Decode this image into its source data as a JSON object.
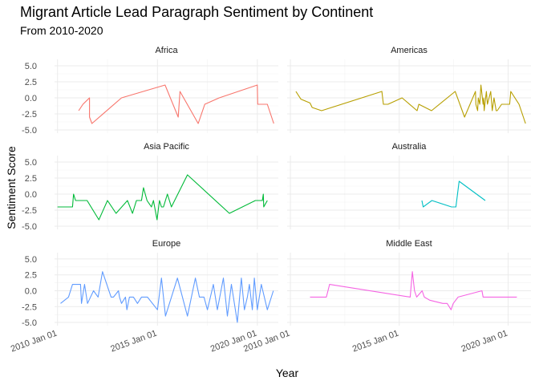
{
  "chart_data": {
    "type": "line",
    "title": "Migrant Article Lead Paragraph Sentiment by Continent",
    "subtitle": "From 2010-2020",
    "xlabel": "Year",
    "ylabel": "Sentiment Score",
    "xlim": [
      2009.85,
      2021.05
    ],
    "ylim": [
      -5.5,
      6.0
    ],
    "x_ticks": [
      2010,
      2015,
      2020
    ],
    "x_tick_labels": [
      "2010 Jan 01",
      "2015 Jan 01",
      "2020 Jan 01"
    ],
    "y_ticks": [
      -5,
      -2.5,
      0,
      2.5,
      5
    ],
    "y_tick_labels": [
      "-5.0",
      "-2.5",
      "0.0",
      "2.5",
      "5.0"
    ],
    "grid": true,
    "legend": "none",
    "panels": [
      {
        "name": "Africa",
        "color": "#F8766D",
        "x": [
          2011.06,
          2011.27,
          2011.6,
          2011.6,
          2011.72,
          2013.2,
          2015.38,
          2016.04,
          2016.13,
          2017.04,
          2017.37,
          2018.09,
          2020.0,
          2020.02,
          2020.5,
          2020.82
        ],
        "y": [
          -2.0,
          -1.0,
          0.0,
          -3.0,
          -4.0,
          0.0,
          2.0,
          -3.0,
          1.0,
          -4.0,
          -1.0,
          0.0,
          2.0,
          -1.0,
          -1.0,
          -4.0
        ]
      },
      {
        "name": "Americas",
        "color": "#B79F00",
        "x": [
          2010.25,
          2010.48,
          2010.9,
          2011.0,
          2011.43,
          2014.2,
          2014.27,
          2014.48,
          2015.13,
          2015.82,
          2015.9,
          2016.48,
          2017.57,
          2018.0,
          2018.5,
          2018.52,
          2018.6,
          2018.63,
          2018.7,
          2018.75,
          2018.85,
          2018.88,
          2018.9,
          2019.0,
          2019.05,
          2019.2,
          2019.27,
          2019.35,
          2019.45,
          2019.5,
          2019.7,
          2020.07,
          2020.12,
          2020.5,
          2020.8
        ],
        "y": [
          1.0,
          -0.2,
          -0.8,
          -1.5,
          -2.0,
          1.0,
          -1.0,
          -1.0,
          0.0,
          -2.0,
          -1.0,
          -2.0,
          1.0,
          -3.0,
          1.0,
          -1.0,
          -2.0,
          0.0,
          -1.0,
          2.0,
          -1.0,
          0.0,
          -2.0,
          1.0,
          -1.0,
          1.0,
          -2.0,
          0.0,
          -2.0,
          -2.0,
          -1.0,
          -1.0,
          1.0,
          -1.0,
          -4.0
        ]
      },
      {
        "name": "Asia Pacific",
        "color": "#00BA38",
        "x": [
          2010.0,
          2010.75,
          2010.8,
          2010.9,
          2011.48,
          2012.07,
          2012.5,
          2012.93,
          2013.5,
          2013.75,
          2013.95,
          2014.2,
          2014.3,
          2014.48,
          2014.7,
          2014.8,
          2014.98,
          2015.1,
          2015.2,
          2015.3,
          2015.5,
          2015.7,
          2016.5,
          2018.6,
          2019.9,
          2020.25,
          2020.3,
          2020.32,
          2020.5
        ],
        "y": [
          -2.0,
          -2.0,
          0.0,
          -1.0,
          -1.0,
          -4.0,
          -1.0,
          -3.0,
          -1.0,
          -3.0,
          -1.0,
          -1.0,
          1.0,
          -1.0,
          -2.0,
          -1.0,
          -4.0,
          -1.0,
          -2.0,
          -2.0,
          0.0,
          -2.0,
          3.0,
          -3.0,
          -1.0,
          -1.0,
          0.0,
          -2.0,
          -1.0
        ]
      },
      {
        "name": "Australia",
        "color": "#00BFC4",
        "x": [
          2016.04,
          2016.1,
          2016.5,
          2017.4,
          2017.6,
          2017.75,
          2018.95
        ],
        "y": [
          -1.0,
          -2.0,
          -1.0,
          -2.0,
          -2.0,
          2.0,
          -1.0
        ]
      },
      {
        "name": "Europe",
        "color": "#619CFF",
        "x": [
          2010.15,
          2010.55,
          2010.75,
          2011.15,
          2011.2,
          2011.35,
          2011.5,
          2011.8,
          2012.03,
          2012.25,
          2012.68,
          2012.8,
          2013.05,
          2013.1,
          2013.2,
          2013.4,
          2013.47,
          2013.6,
          2013.8,
          2014.0,
          2014.2,
          2014.5,
          2015.0,
          2015.2,
          2015.4,
          2016.0,
          2016.5,
          2016.9,
          2017.1,
          2017.33,
          2017.5,
          2017.8,
          2018.0,
          2018.3,
          2018.5,
          2018.7,
          2019.0,
          2019.2,
          2019.35,
          2019.5,
          2019.6,
          2019.75,
          2019.85,
          2020.0,
          2020.2,
          2020.5,
          2020.8
        ],
        "y": [
          -2.0,
          -1.0,
          1.0,
          1.0,
          -2.0,
          1.0,
          -2.0,
          0.0,
          -1.0,
          3.0,
          -1.0,
          -1.0,
          0.0,
          -1.0,
          -2.0,
          -1.0,
          -3.0,
          -1.0,
          -1.0,
          -2.0,
          -1.0,
          -1.0,
          -3.0,
          2.0,
          -4.0,
          2.0,
          -4.0,
          2.0,
          -1.0,
          -1.0,
          -3.0,
          1.0,
          -3.0,
          2.0,
          -4.0,
          1.0,
          -5.0,
          2.0,
          -3.0,
          -1.0,
          1.0,
          -3.0,
          2.0,
          -3.0,
          1.0,
          -3.0,
          0.0
        ]
      },
      {
        "name": "Middle East",
        "color": "#F564E3",
        "x": [
          2010.9,
          2011.65,
          2011.8,
          2015.5,
          2015.6,
          2015.7,
          2015.8,
          2016.05,
          2016.15,
          2016.4,
          2017.0,
          2017.2,
          2017.38,
          2017.48,
          2017.7,
          2018.8,
          2018.85,
          2019.0,
          2020.4
        ],
        "y": [
          -1.0,
          -1.0,
          1.0,
          -1.0,
          3.0,
          0.0,
          -1.0,
          0.0,
          -1.0,
          -1.5,
          -2.0,
          -2.0,
          -3.0,
          -2.0,
          -1.0,
          0.0,
          -1.0,
          -1.0,
          -1.0
        ]
      }
    ]
  }
}
